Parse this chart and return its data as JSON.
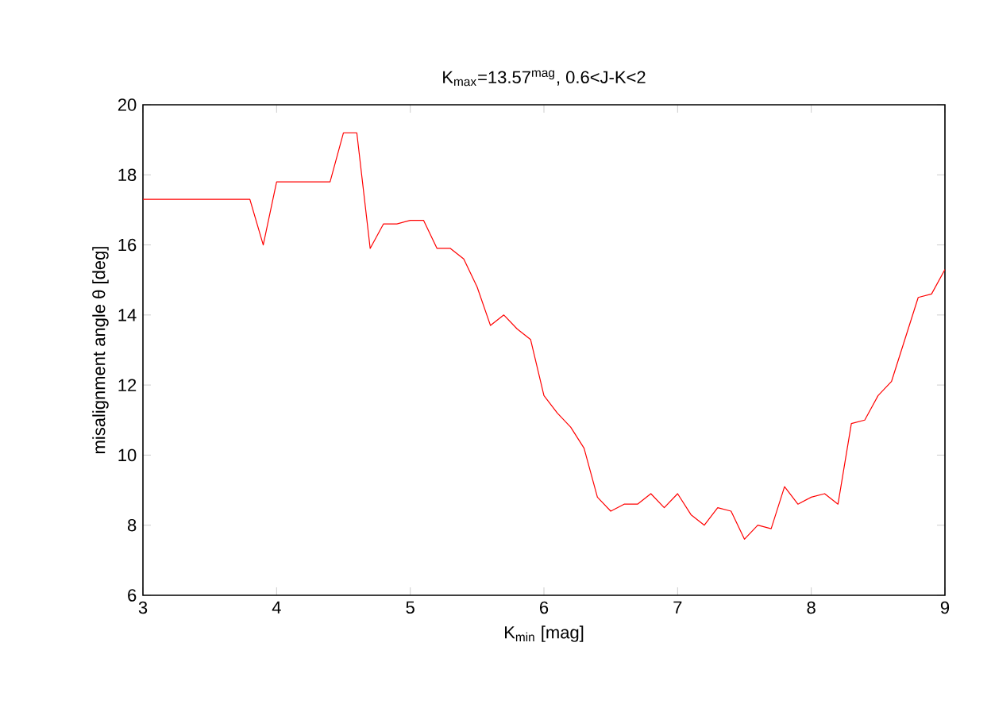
{
  "chart_data": {
    "type": "line",
    "title": "K$_{max}$=13.57$^{mag}$, 0.6<J-K<2",
    "xlabel": "K$_{min}$ [mag]",
    "ylabel": "misalignment angle θ [deg]",
    "x": [
      3.0,
      3.1,
      3.2,
      3.3,
      3.4,
      3.5,
      3.6,
      3.7,
      3.8,
      3.9,
      4.0,
      4.1,
      4.2,
      4.3,
      4.4,
      4.5,
      4.6,
      4.7,
      4.8,
      4.9,
      5.0,
      5.1,
      5.2,
      5.3,
      5.4,
      5.5,
      5.6,
      5.7,
      5.8,
      5.9,
      6.0,
      6.1,
      6.2,
      6.3,
      6.4,
      6.5,
      6.6,
      6.7,
      6.8,
      6.9,
      7.0,
      7.1,
      7.2,
      7.3,
      7.4,
      7.5,
      7.6,
      7.7,
      7.8,
      7.9,
      8.0,
      8.1,
      8.2,
      8.3,
      8.4,
      8.5,
      8.6,
      8.7,
      8.8,
      8.9,
      9.0
    ],
    "series": [
      {
        "color": "#ff0000",
        "values": [
          17.3,
          17.3,
          17.3,
          17.3,
          17.3,
          17.3,
          17.3,
          17.3,
          17.3,
          16.0,
          17.8,
          17.8,
          17.8,
          17.8,
          17.8,
          19.2,
          19.2,
          15.9,
          16.6,
          16.6,
          16.7,
          16.7,
          15.9,
          15.9,
          15.6,
          14.8,
          13.7,
          14.0,
          13.6,
          13.3,
          11.7,
          11.2,
          10.8,
          10.2,
          8.8,
          8.4,
          8.6,
          8.6,
          8.9,
          8.5,
          8.9,
          8.3,
          8.0,
          8.5,
          8.4,
          7.6,
          8.0,
          7.9,
          9.1,
          8.6,
          8.8,
          8.9,
          8.6,
          10.9,
          11.0,
          11.7,
          12.1,
          13.3,
          14.5,
          14.6,
          15.3
        ]
      }
    ],
    "xlim": [
      3,
      9
    ],
    "ylim": [
      6,
      20
    ],
    "xticks": [
      3,
      4,
      5,
      6,
      7,
      8,
      9
    ],
    "yticks": [
      6,
      8,
      10,
      12,
      14,
      16,
      18,
      20
    ],
    "marker": "none",
    "line_style": "solid"
  }
}
